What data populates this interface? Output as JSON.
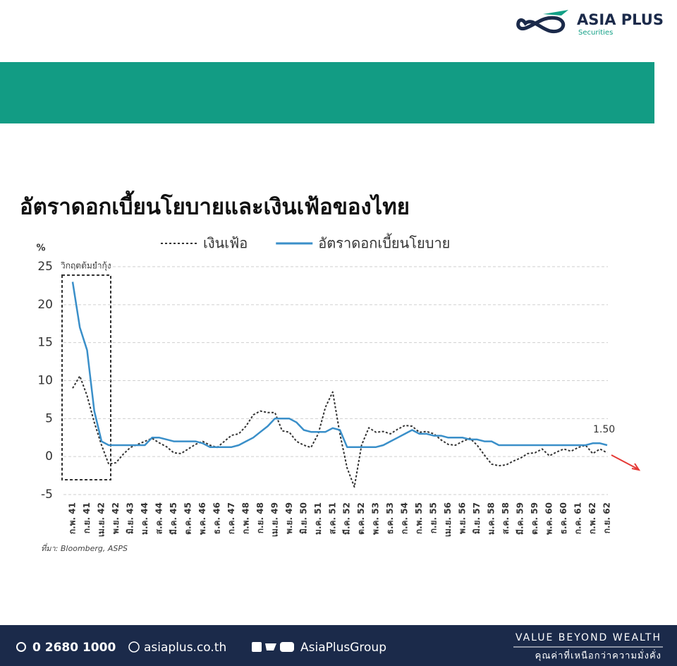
{
  "logo": {
    "name": "ASIA PLUS",
    "tagline": "Securities"
  },
  "chart_data": {
    "type": "line",
    "title": "อัตราดอกเบี้ยนโยบายและเงินเฟ้อของไทย",
    "y_label": "%",
    "annotation": "วิกฤตต้มยำกุ้ง",
    "source": "ที่มา: Bloomberg, ASPS",
    "legend": "top",
    "grid": true,
    "ylim": [
      -5,
      25
    ],
    "yticks": [
      -5,
      0,
      5,
      10,
      15,
      20,
      25
    ],
    "categories": [
      "ก.พ. 41",
      null,
      "ก.ย. 41",
      null,
      "เม.ย. 42",
      null,
      "พ.ย. 42",
      null,
      "มิ.ย. 43",
      null,
      "ม.ค. 44",
      null,
      "ส.ค. 44",
      null,
      "มี.ค. 45",
      null,
      "ต.ค. 45",
      null,
      "พ.ค. 46",
      null,
      "ธ.ค. 46",
      null,
      "ก.ค. 47",
      null,
      "ก.พ. 48",
      null,
      "ก.ย. 48",
      null,
      "เม.ย. 49",
      null,
      "พ.ย. 49",
      null,
      "มิ.ย. 50",
      null,
      "ม.ค. 51",
      null,
      "ส.ค. 51",
      null,
      "มี.ค. 52",
      null,
      "ต.ค. 52",
      null,
      "พ.ค. 53",
      null,
      "ธ.ค. 53",
      null,
      "ก.ค. 54",
      null,
      "ก.พ. 55",
      null,
      "ก.ย. 55",
      null,
      "เม.ย. 56",
      null,
      "พ.ย. 56",
      null,
      "มิ.ย. 57",
      null,
      "ม.ค. 58",
      null,
      "ส.ค. 58",
      null,
      "มี.ค. 59",
      null,
      "ต.ค. 59",
      null,
      "พ.ค. 60",
      null,
      "ธ.ค. 60",
      null,
      "ก.ค. 61",
      null,
      "ก.พ. 62",
      null,
      "ก.ย. 62"
    ],
    "series": [
      {
        "name": "เงินเฟ้อ",
        "color": "#333333",
        "dashed": true,
        "values": [
          9,
          10.6,
          8,
          4.5,
          1.5,
          -1,
          -0.8,
          0.3,
          1.2,
          1.6,
          2,
          2.4,
          1.8,
          1.3,
          0.5,
          0.4,
          1,
          1.6,
          2,
          1.5,
          1.2,
          2,
          2.8,
          3,
          4,
          5.5,
          6,
          5.8,
          5.8,
          3.4,
          3.2,
          2,
          1.5,
          1.2,
          3,
          6.5,
          8.5,
          3,
          -1.5,
          -4,
          1.5,
          3.8,
          3.2,
          3.3,
          3,
          3.6,
          4.1,
          4,
          3.2,
          3.3,
          3,
          2.2,
          1.6,
          1.5,
          2,
          2.4,
          1.5,
          0.2,
          -1,
          -1.2,
          -1.1,
          -0.6,
          -0.2,
          0.4,
          0.5,
          1,
          0.1,
          0.6,
          1,
          0.7,
          1.2,
          1.5,
          0.4,
          1,
          0.5
        ]
      },
      {
        "name": "อัตราดอกเบี้ยนโยบาย",
        "color": "#3a8fc9",
        "dashed": false,
        "values": [
          23,
          17,
          14,
          6,
          2,
          1.5,
          1.5,
          1.5,
          1.5,
          1.5,
          1.5,
          2.5,
          2.5,
          2.25,
          2,
          2,
          2,
          2,
          1.75,
          1.25,
          1.25,
          1.25,
          1.25,
          1.5,
          2,
          2.5,
          3.25,
          4,
          5,
          5,
          5,
          4.5,
          3.5,
          3.25,
          3.25,
          3.25,
          3.75,
          3.5,
          1.25,
          1.25,
          1.25,
          1.25,
          1.25,
          1.5,
          2,
          2.5,
          3,
          3.5,
          3,
          3,
          2.75,
          2.75,
          2.5,
          2.5,
          2.5,
          2.25,
          2.25,
          2,
          2,
          1.5,
          1.5,
          1.5,
          1.5,
          1.5,
          1.5,
          1.5,
          1.5,
          1.5,
          1.5,
          1.5,
          1.5,
          1.5,
          1.75,
          1.75,
          1.5
        ],
        "value_labels": [
          null,
          null,
          null,
          null,
          null,
          null,
          null,
          null,
          null,
          null,
          null,
          null,
          null,
          null,
          null,
          null,
          null,
          null,
          null,
          null,
          null,
          null,
          null,
          null,
          null,
          null,
          null,
          null,
          null,
          null,
          null,
          null,
          null,
          null,
          null,
          null,
          null,
          null,
          null,
          null,
          null,
          null,
          null,
          null,
          null,
          null,
          null,
          null,
          null,
          null,
          null,
          null,
          null,
          null,
          null,
          null,
          null,
          null,
          null,
          null,
          null,
          null,
          null,
          null,
          null,
          null,
          null,
          null,
          null,
          null,
          null,
          null,
          null,
          null,
          "1.50"
        ]
      }
    ]
  },
  "footer": {
    "phone": "0 2680 1000",
    "website": "asiaplus.co.th",
    "social": "AsiaPlusGroup",
    "slogan": "VALUE BEYOND WEALTH",
    "slogan_th": "คุณค่าที่เหนือกว่าความมั่งคั่ง"
  }
}
